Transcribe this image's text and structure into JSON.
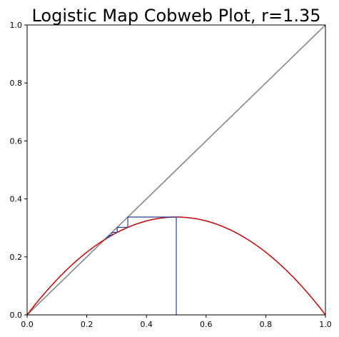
{
  "chart_data": {
    "type": "line",
    "title": "Logistic Map Cobweb Plot, r=1.35",
    "xlabel": "",
    "ylabel": "",
    "xlim": [
      0,
      1
    ],
    "ylim": [
      0,
      1
    ],
    "grid": false,
    "x_ticks": [
      "0.0",
      "0.2",
      "0.4",
      "0.6",
      "0.8",
      "1.0"
    ],
    "y_ticks": [
      "0.0",
      "0.2",
      "0.4",
      "0.6",
      "0.8",
      "1.0"
    ],
    "r": 1.35,
    "x0": 0.5,
    "iterations": 12,
    "series": [
      {
        "kind": "identity",
        "color": "#808080",
        "x": [
          0,
          1
        ],
        "y": [
          0,
          1
        ]
      },
      {
        "kind": "logistic-curve",
        "color": "#cc0000",
        "formula": "y = r*x*(1-x)"
      },
      {
        "kind": "cobweb",
        "color": "#1f3fa8",
        "x": [
          0.5,
          0.5,
          0.3375,
          0.3375,
          0.3019,
          0.3019,
          0.2845,
          0.2845,
          0.2748,
          0.2748,
          0.269,
          0.269,
          0.2654
        ],
        "y": [
          0,
          0.3375,
          0.3375,
          0.3019,
          0.3019,
          0.2845,
          0.2845,
          0.2748,
          0.2748,
          0.269,
          0.269,
          0.2654,
          0.2654
        ]
      }
    ]
  }
}
